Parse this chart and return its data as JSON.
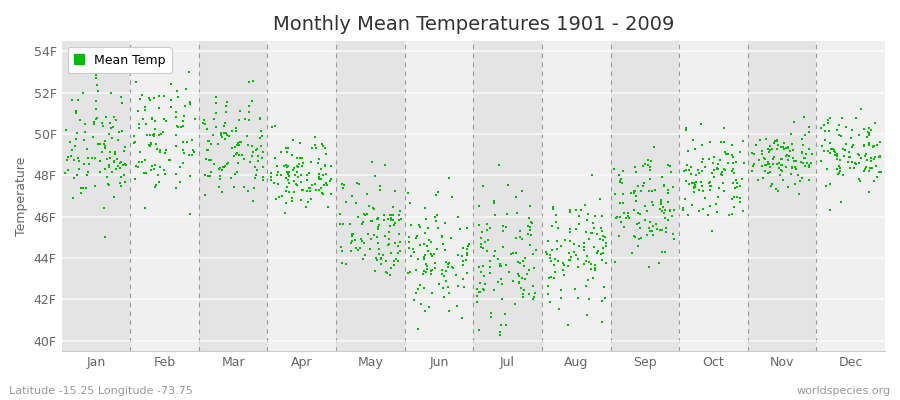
{
  "title": "Monthly Mean Temperatures 1901 - 2009",
  "ylabel": "Temperature",
  "xlabel_labels": [
    "Jan",
    "Feb",
    "Mar",
    "Apr",
    "May",
    "Jun",
    "Jul",
    "Aug",
    "Sep",
    "Oct",
    "Nov",
    "Dec"
  ],
  "ytick_labels": [
    "40F",
    "42F",
    "44F",
    "46F",
    "48F",
    "50F",
    "52F",
    "54F"
  ],
  "ytick_values": [
    40,
    42,
    44,
    46,
    48,
    50,
    52,
    54
  ],
  "ylim": [
    39.5,
    54.5
  ],
  "dot_color": "#00BB00",
  "dot_size": 3,
  "legend_label": "Mean Temp",
  "bg_color_light": "#f0f0f0",
  "bg_color_dark": "#e4e4e4",
  "footer_left": "Latitude -15.25 Longitude -73.75",
  "footer_right": "worldspecies.org",
  "title_fontsize": 14,
  "axis_fontsize": 9,
  "footer_fontsize": 8,
  "monthly_means": [
    49.2,
    49.8,
    49.2,
    48.0,
    45.5,
    44.2,
    43.8,
    44.2,
    46.5,
    47.8,
    48.8,
    49.2
  ],
  "monthly_stds": [
    1.4,
    1.5,
    1.3,
    0.9,
    1.3,
    1.5,
    1.4,
    1.3,
    1.2,
    1.2,
    0.8,
    0.9
  ]
}
